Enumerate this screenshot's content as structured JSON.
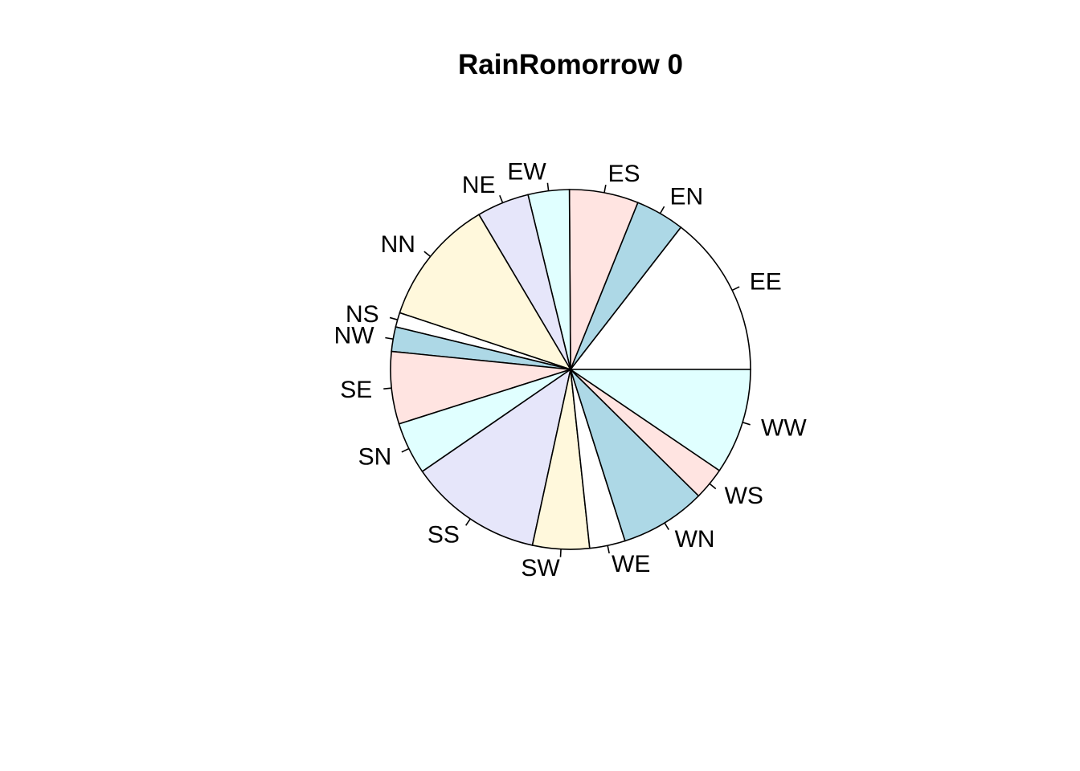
{
  "chart_data": {
    "type": "pie",
    "title": "RainRomorrow 0",
    "direction": "counterclockwise",
    "start_angle_deg": 0,
    "slices": [
      {
        "label": "EE",
        "value": 14.5,
        "color": "#ffffff"
      },
      {
        "label": "EN",
        "value": 4.4,
        "color": "#add8e6"
      },
      {
        "label": "ES",
        "value": 6.2,
        "color": "#ffe4e1"
      },
      {
        "label": "EW",
        "value": 3.7,
        "color": "#e0ffff"
      },
      {
        "label": "NE",
        "value": 4.7,
        "color": "#e6e6fa"
      },
      {
        "label": "NN",
        "value": 11.4,
        "color": "#fff8dc"
      },
      {
        "label": "NS",
        "value": 1.3,
        "color": "#ffffff"
      },
      {
        "label": "NW",
        "value": 2.2,
        "color": "#add8e6"
      },
      {
        "label": "SE",
        "value": 6.5,
        "color": "#ffe4e1"
      },
      {
        "label": "SN",
        "value": 4.7,
        "color": "#e0ffff"
      },
      {
        "label": "SS",
        "value": 12.0,
        "color": "#e6e6fa"
      },
      {
        "label": "SW",
        "value": 5.1,
        "color": "#fff8dc"
      },
      {
        "label": "WE",
        "value": 3.2,
        "color": "#ffffff"
      },
      {
        "label": "WN",
        "value": 7.7,
        "color": "#add8e6"
      },
      {
        "label": "WS",
        "value": 2.9,
        "color": "#ffe4e1"
      },
      {
        "label": "WW",
        "value": 9.5,
        "color": "#e0ffff"
      }
    ]
  }
}
